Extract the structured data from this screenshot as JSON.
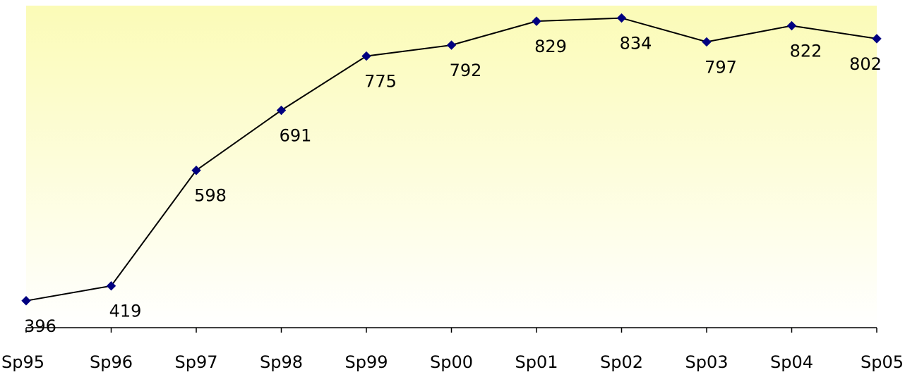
{
  "chart_data": {
    "type": "line",
    "title": "",
    "xlabel": "",
    "ylabel": "",
    "categories": [
      "Sp95",
      "Sp96",
      "Sp97",
      "Sp98",
      "Sp99",
      "Sp00",
      "Sp01",
      "Sp02",
      "Sp03",
      "Sp04",
      "Sp05"
    ],
    "series": [
      {
        "values": [
          396,
          419,
          598,
          691,
          775,
          792,
          829,
          834,
          797,
          822,
          802
        ],
        "color": "#000000",
        "marker": "diamond",
        "marker_color": "#000080"
      }
    ],
    "data_labels": true,
    "ylim": [
      350,
      850
    ],
    "grid": false,
    "legend": "none",
    "plot_background": "gradient-yellow-to-white"
  }
}
